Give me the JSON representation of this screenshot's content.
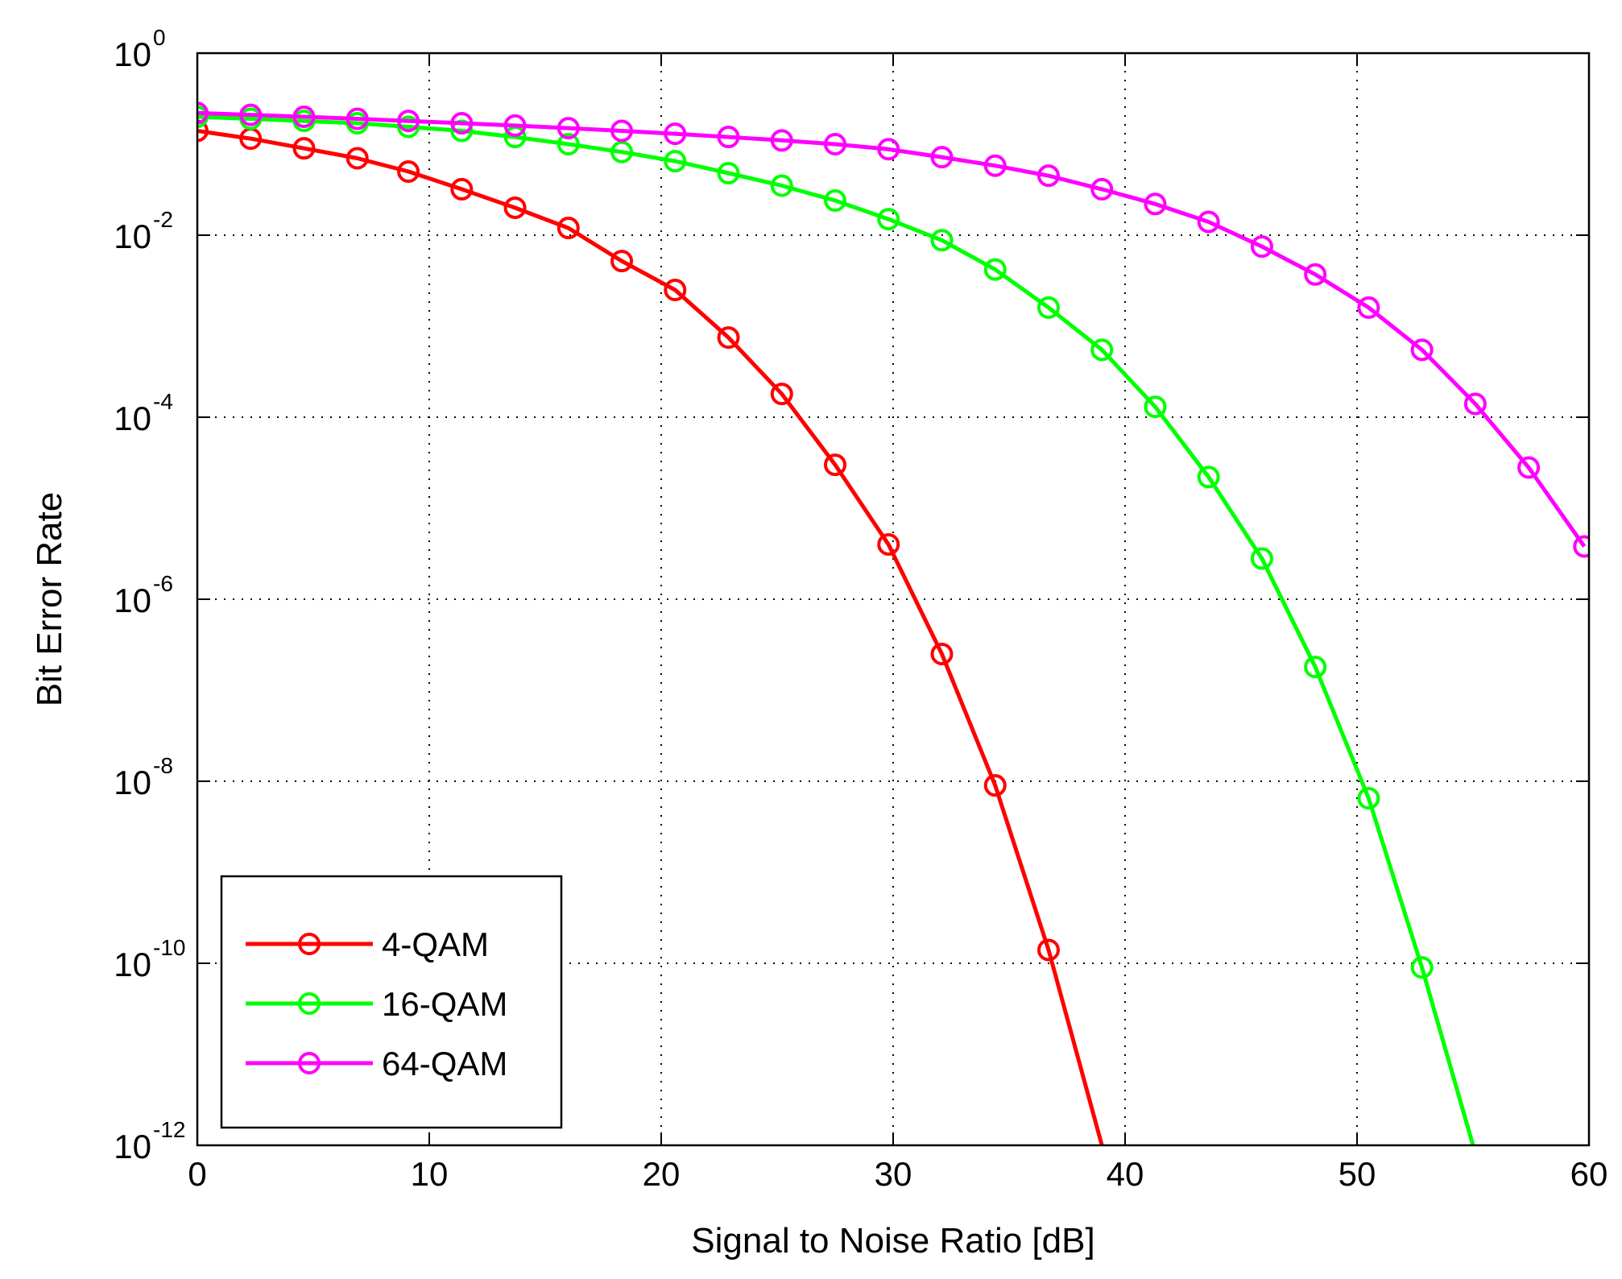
{
  "chart_data": {
    "type": "line",
    "xlabel": "Signal to Noise Ratio [dB]",
    "ylabel": "Bit Error Rate",
    "xlim": [
      0,
      60
    ],
    "ylim": [
      1e-12,
      1
    ],
    "yscale": "log",
    "grid": true,
    "legend_position": "bottom-left",
    "x_ticks": [
      "0",
      "10",
      "20",
      "30",
      "40",
      "50",
      "60"
    ],
    "y_ticks": [
      {
        "base": "10",
        "exp": "0",
        "value": 1
      },
      {
        "base": "10",
        "exp": "-2",
        "value": 0.01
      },
      {
        "base": "10",
        "exp": "-4",
        "value": 0.0001
      },
      {
        "base": "10",
        "exp": "-6",
        "value": 1e-06
      },
      {
        "base": "10",
        "exp": "-8",
        "value": 1e-08
      },
      {
        "base": "10",
        "exp": "-10",
        "value": 1e-10
      },
      {
        "base": "10",
        "exp": "-12",
        "value": 1e-12
      }
    ],
    "series": [
      {
        "name": "4-QAM",
        "color": "#ff0000",
        "marker": "circle",
        "points": [
          [
            0,
            0.14
          ],
          [
            2.3,
            0.115
          ],
          [
            4.6,
            0.09
          ],
          [
            6.9,
            0.07
          ],
          [
            9.1,
            0.05
          ],
          [
            11.4,
            0.032
          ],
          [
            13.7,
            0.02
          ],
          [
            16.0,
            0.012
          ],
          [
            18.3,
            0.0052
          ],
          [
            20.6,
            0.0025
          ],
          [
            22.9,
            0.00075
          ],
          [
            25.2,
            0.00018
          ],
          [
            27.5,
            3e-05
          ],
          [
            29.8,
            4e-06
          ],
          [
            32.1,
            2.5e-07
          ],
          [
            34.4,
            9e-09
          ],
          [
            36.7,
            1.4e-10
          ],
          [
            39.0,
            1e-12
          ]
        ],
        "marker_count": 17
      },
      {
        "name": "16-QAM",
        "color": "#00ff00",
        "marker": "circle",
        "points": [
          [
            0,
            0.2
          ],
          [
            2.3,
            0.19
          ],
          [
            4.6,
            0.18
          ],
          [
            6.9,
            0.17
          ],
          [
            9.1,
            0.155
          ],
          [
            11.4,
            0.14
          ],
          [
            13.7,
            0.12
          ],
          [
            16.0,
            0.1
          ],
          [
            18.3,
            0.082
          ],
          [
            20.6,
            0.065
          ],
          [
            22.9,
            0.048
          ],
          [
            25.2,
            0.035
          ],
          [
            27.5,
            0.024
          ],
          [
            29.8,
            0.015
          ],
          [
            32.1,
            0.0088
          ],
          [
            34.4,
            0.0042
          ],
          [
            36.7,
            0.0016
          ],
          [
            39.0,
            0.00055
          ],
          [
            41.3,
            0.00013
          ],
          [
            43.6,
            2.2e-05
          ],
          [
            45.9,
            2.8e-06
          ],
          [
            48.2,
            1.8e-07
          ],
          [
            50.5,
            6.5e-09
          ],
          [
            52.8,
            9e-11
          ],
          [
            55.0,
            1e-12
          ]
        ],
        "marker_count": 24
      },
      {
        "name": "64-QAM",
        "color": "#ff00ff",
        "marker": "circle",
        "points": [
          [
            0,
            0.22
          ],
          [
            2.3,
            0.21
          ],
          [
            4.6,
            0.2
          ],
          [
            6.9,
            0.19
          ],
          [
            9.1,
            0.18
          ],
          [
            11.4,
            0.17
          ],
          [
            13.7,
            0.16
          ],
          [
            16.0,
            0.15
          ],
          [
            18.3,
            0.14
          ],
          [
            20.6,
            0.13
          ],
          [
            22.9,
            0.12
          ],
          [
            25.2,
            0.11
          ],
          [
            27.5,
            0.1
          ],
          [
            29.8,
            0.088
          ],
          [
            32.1,
            0.072
          ],
          [
            34.4,
            0.058
          ],
          [
            36.7,
            0.045
          ],
          [
            39.0,
            0.032
          ],
          [
            41.3,
            0.022
          ],
          [
            43.6,
            0.014
          ],
          [
            45.9,
            0.0075
          ],
          [
            48.2,
            0.0037
          ],
          [
            50.5,
            0.0016
          ],
          [
            52.8,
            0.00055
          ],
          [
            55.1,
            0.00014
          ],
          [
            57.4,
            2.8e-05
          ],
          [
            59.8,
            3.8e-06
          ]
        ],
        "marker_count": 27
      }
    ]
  }
}
